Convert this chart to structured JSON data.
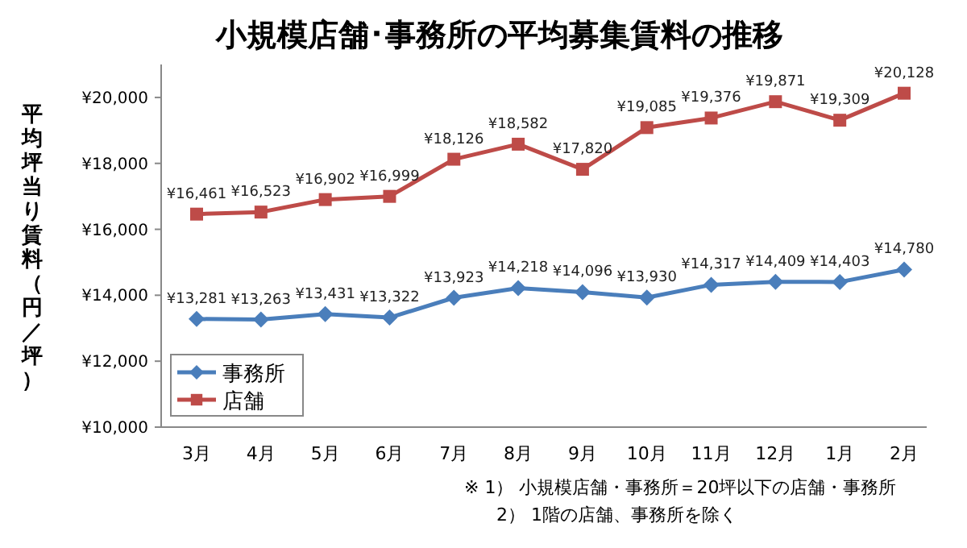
{
  "chart_data": {
    "type": "line",
    "title": "小規模店舗･事務所の平均募集賃料の推移",
    "ylabel": "平均坪当り賃料（円／坪）",
    "categories": [
      "3月",
      "4月",
      "5月",
      "6月",
      "7月",
      "8月",
      "9月",
      "10月",
      "11月",
      "12月",
      "1月",
      "2月"
    ],
    "series": [
      {
        "name": "事務所",
        "color": "#4a7ebb",
        "marker": "diamond",
        "values": [
          13281,
          13263,
          13431,
          13322,
          13923,
          14218,
          14096,
          13930,
          14317,
          14409,
          14403,
          14780
        ],
        "value_labels": [
          "¥13,281",
          "¥13,263",
          "¥13,431",
          "¥13,322",
          "¥13,923",
          "¥14,218",
          "¥14,096",
          "¥13,930",
          "¥14,317",
          "¥14,409",
          "¥14,403",
          "¥14,780"
        ]
      },
      {
        "name": "店舗",
        "color": "#be4b48",
        "marker": "square",
        "values": [
          16461,
          16523,
          16902,
          16999,
          18126,
          18582,
          17820,
          19085,
          19376,
          19871,
          19309,
          20128
        ],
        "value_labels": [
          "¥16,461",
          "¥16,523",
          "¥16,902",
          "¥16,999",
          "¥18,126",
          "¥18,582",
          "¥17,820",
          "¥19,085",
          "¥19,376",
          "¥19,871",
          "¥19,309",
          "¥20,128"
        ]
      }
    ],
    "ylim": [
      10000,
      21000
    ],
    "yticks": [
      {
        "value": 10000,
        "label": "¥10,000"
      },
      {
        "value": 12000,
        "label": "¥12,000"
      },
      {
        "value": 14000,
        "label": "¥14,000"
      },
      {
        "value": 16000,
        "label": "¥16,000"
      },
      {
        "value": 18000,
        "label": "¥18,000"
      },
      {
        "value": 20000,
        "label": "¥20,000"
      }
    ],
    "grid": false,
    "legend": "bottom left",
    "line_style": "solid",
    "annotations": [
      "※ 1） 小規模店舗・事務所＝20坪以下の店舗・事務所",
      "2） 1階の店舗、事務所を除く"
    ]
  }
}
